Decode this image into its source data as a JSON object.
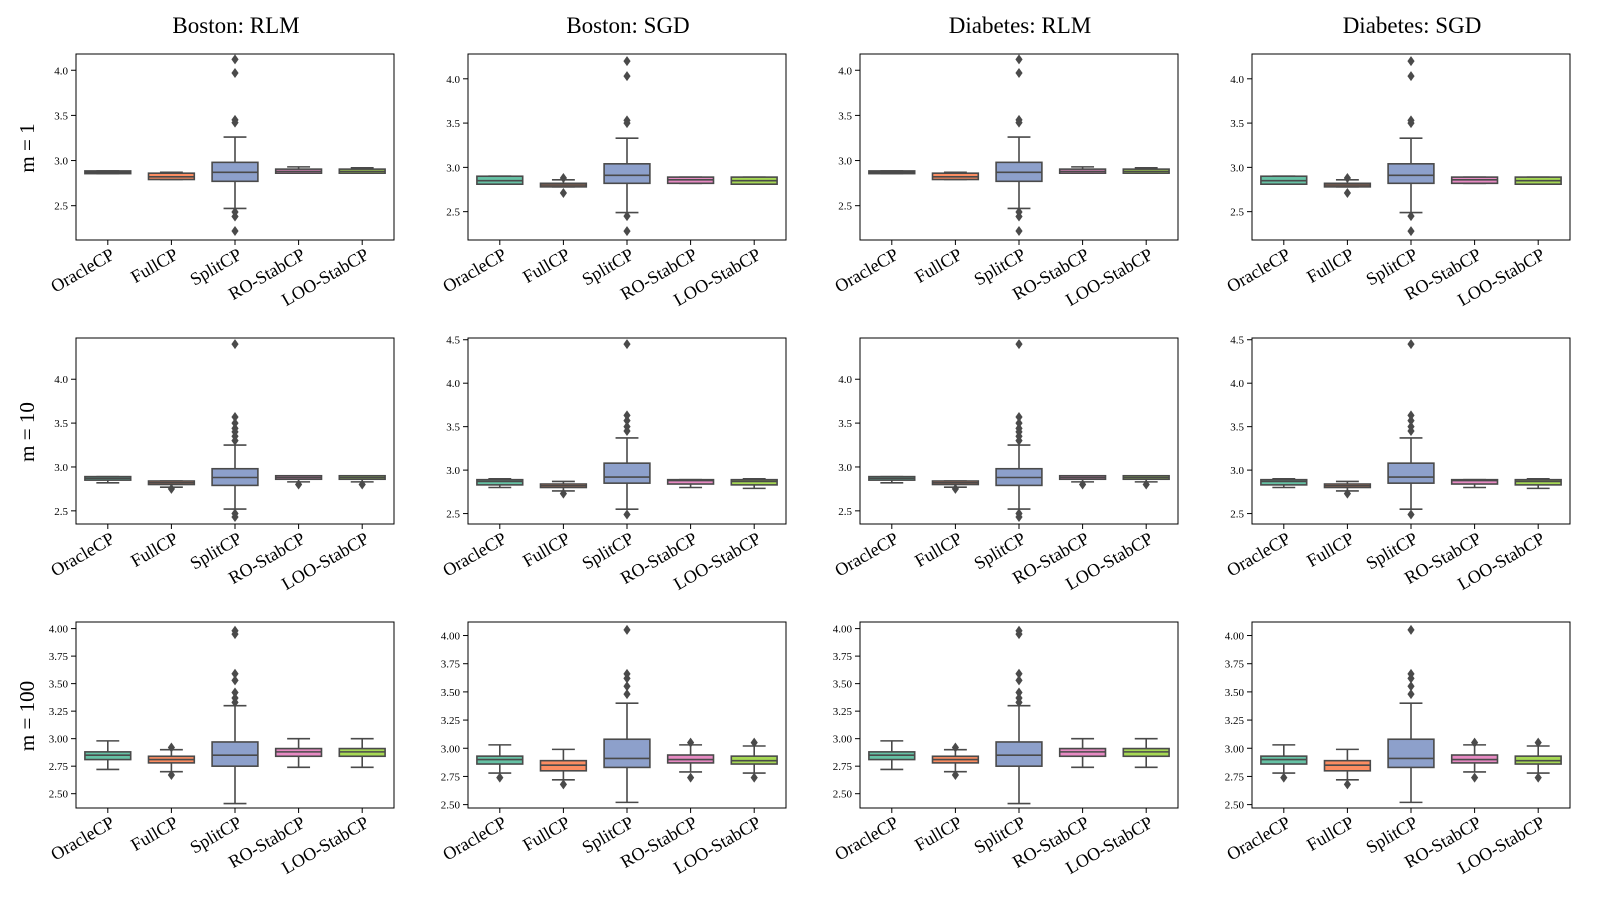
{
  "figure": {
    "column_titles": [
      "Boston: RLM",
      "Boston: SGD",
      "Diabetes: RLM",
      "Diabetes: SGD"
    ],
    "row_labels": [
      "m = 1",
      "m = 10",
      "m = 100"
    ],
    "methods": [
      "OracleCP",
      "FullCP",
      "SplitCP",
      "RO-StabCP",
      "LOO-StabCP"
    ],
    "colors": [
      "#66c2a5",
      "#fc8d62",
      "#8da0cb",
      "#e78ac3",
      "#a6d854"
    ],
    "box_edge_color": "#4a4a4a"
  },
  "chart_data": [
    {
      "type": "box",
      "title": "Boston: RLM",
      "row_label": "m = 1",
      "categories": [
        "OracleCP",
        "FullCP",
        "SplitCP",
        "RO-StabCP",
        "LOO-StabCP"
      ],
      "ylim": [
        2.12,
        4.18
      ],
      "yticks": [
        2.5,
        3.0,
        3.5,
        4.0
      ],
      "ytick_labels": [
        "2.5",
        "3.0",
        "3.5",
        "4.0"
      ],
      "boxes": [
        {
          "q1": 2.855,
          "median": 2.87,
          "q3": 2.885,
          "whislo": 2.855,
          "whishi": 2.885,
          "fliers": []
        },
        {
          "q1": 2.79,
          "median": 2.82,
          "q3": 2.86,
          "whislo": 2.79,
          "whishi": 2.87,
          "fliers": []
        },
        {
          "q1": 2.77,
          "median": 2.87,
          "q3": 2.98,
          "whislo": 2.47,
          "whishi": 3.26,
          "fliers": [
            2.38,
            2.43,
            2.22,
            3.42,
            3.45,
            3.97,
            4.12
          ]
        },
        {
          "q1": 2.86,
          "median": 2.88,
          "q3": 2.905,
          "whislo": 2.86,
          "whishi": 2.93,
          "fliers": []
        },
        {
          "q1": 2.86,
          "median": 2.88,
          "q3": 2.905,
          "whislo": 2.86,
          "whishi": 2.92,
          "fliers": []
        }
      ]
    },
    {
      "type": "box",
      "title": "Boston: SGD",
      "row_label": "m = 1",
      "categories": [
        "OracleCP",
        "FullCP",
        "SplitCP",
        "RO-StabCP",
        "LOO-StabCP"
      ],
      "ylim": [
        2.18,
        4.28
      ],
      "yticks": [
        2.5,
        3.0,
        3.5,
        4.0
      ],
      "ytick_labels": [
        "2.5",
        "3.0",
        "3.5",
        "4.0"
      ],
      "boxes": [
        {
          "q1": 2.81,
          "median": 2.85,
          "q3": 2.9,
          "whislo": 2.81,
          "whishi": 2.9,
          "fliers": []
        },
        {
          "q1": 2.78,
          "median": 2.8,
          "q3": 2.82,
          "whislo": 2.78,
          "whishi": 2.86,
          "fliers": [
            2.71,
            2.88
          ]
        },
        {
          "q1": 2.82,
          "median": 2.91,
          "q3": 3.04,
          "whislo": 2.49,
          "whishi": 3.33,
          "fliers": [
            2.45,
            2.28,
            3.5,
            3.53,
            4.03,
            4.2
          ]
        },
        {
          "q1": 2.82,
          "median": 2.86,
          "q3": 2.89,
          "whislo": 2.82,
          "whishi": 2.89,
          "fliers": []
        },
        {
          "q1": 2.81,
          "median": 2.85,
          "q3": 2.89,
          "whislo": 2.81,
          "whishi": 2.89,
          "fliers": []
        }
      ]
    },
    {
      "type": "box",
      "title": "Diabetes: RLM",
      "row_label": "m = 1",
      "categories": [
        "OracleCP",
        "FullCP",
        "SplitCP",
        "RO-StabCP",
        "LOO-StabCP"
      ],
      "ylim": [
        2.12,
        4.18
      ],
      "yticks": [
        2.5,
        3.0,
        3.5,
        4.0
      ],
      "ytick_labels": [
        "2.5",
        "3.0",
        "3.5",
        "4.0"
      ],
      "boxes": [
        {
          "q1": 2.855,
          "median": 2.87,
          "q3": 2.885,
          "whislo": 2.855,
          "whishi": 2.885,
          "fliers": []
        },
        {
          "q1": 2.79,
          "median": 2.82,
          "q3": 2.86,
          "whislo": 2.79,
          "whishi": 2.87,
          "fliers": []
        },
        {
          "q1": 2.77,
          "median": 2.87,
          "q3": 2.98,
          "whislo": 2.47,
          "whishi": 3.26,
          "fliers": [
            2.38,
            2.43,
            2.22,
            3.42,
            3.45,
            3.97,
            4.12
          ]
        },
        {
          "q1": 2.86,
          "median": 2.88,
          "q3": 2.905,
          "whislo": 2.86,
          "whishi": 2.93,
          "fliers": []
        },
        {
          "q1": 2.86,
          "median": 2.88,
          "q3": 2.905,
          "whislo": 2.86,
          "whishi": 2.92,
          "fliers": []
        }
      ]
    },
    {
      "type": "box",
      "title": "Diabetes: SGD",
      "row_label": "m = 1",
      "categories": [
        "OracleCP",
        "FullCP",
        "SplitCP",
        "RO-StabCP",
        "LOO-StabCP"
      ],
      "ylim": [
        2.18,
        4.28
      ],
      "yticks": [
        2.5,
        3.0,
        3.5,
        4.0
      ],
      "ytick_labels": [
        "2.5",
        "3.0",
        "3.5",
        "4.0"
      ],
      "boxes": [
        {
          "q1": 2.81,
          "median": 2.85,
          "q3": 2.9,
          "whislo": 2.81,
          "whishi": 2.9,
          "fliers": []
        },
        {
          "q1": 2.78,
          "median": 2.8,
          "q3": 2.82,
          "whislo": 2.78,
          "whishi": 2.86,
          "fliers": [
            2.71,
            2.88
          ]
        },
        {
          "q1": 2.82,
          "median": 2.91,
          "q3": 3.04,
          "whislo": 2.49,
          "whishi": 3.33,
          "fliers": [
            2.45,
            2.28,
            3.5,
            3.53,
            4.03,
            4.2
          ]
        },
        {
          "q1": 2.82,
          "median": 2.86,
          "q3": 2.89,
          "whislo": 2.82,
          "whishi": 2.89,
          "fliers": []
        },
        {
          "q1": 2.81,
          "median": 2.85,
          "q3": 2.89,
          "whislo": 2.81,
          "whishi": 2.89,
          "fliers": []
        }
      ]
    },
    {
      "type": "box",
      "title": "Boston: RLM",
      "row_label": "m = 10",
      "categories": [
        "OracleCP",
        "FullCP",
        "SplitCP",
        "RO-StabCP",
        "LOO-StabCP"
      ],
      "ylim": [
        2.35,
        4.47
      ],
      "yticks": [
        2.5,
        3.0,
        3.5,
        4.0
      ],
      "ytick_labels": [
        "2.5",
        "3.0",
        "3.5",
        "4.0"
      ],
      "boxes": [
        {
          "q1": 2.85,
          "median": 2.87,
          "q3": 2.89,
          "whislo": 2.82,
          "whishi": 2.89,
          "fliers": []
        },
        {
          "q1": 2.8,
          "median": 2.82,
          "q3": 2.84,
          "whislo": 2.77,
          "whishi": 2.84,
          "fliers": [
            2.75
          ]
        },
        {
          "q1": 2.79,
          "median": 2.88,
          "q3": 2.98,
          "whislo": 2.52,
          "whishi": 3.25,
          "fliers": [
            2.47,
            2.43,
            3.3,
            3.35,
            3.4,
            3.44,
            3.5,
            3.57,
            4.4
          ]
        },
        {
          "q1": 2.86,
          "median": 2.88,
          "q3": 2.9,
          "whislo": 2.83,
          "whishi": 2.9,
          "fliers": [
            2.8
          ]
        },
        {
          "q1": 2.86,
          "median": 2.88,
          "q3": 2.9,
          "whislo": 2.83,
          "whishi": 2.9,
          "fliers": [
            2.8
          ]
        }
      ]
    },
    {
      "type": "box",
      "title": "Boston: SGD",
      "row_label": "m = 10",
      "categories": [
        "OracleCP",
        "FullCP",
        "SplitCP",
        "RO-StabCP",
        "LOO-StabCP"
      ],
      "ylim": [
        2.38,
        4.52
      ],
      "yticks": [
        2.5,
        3.0,
        3.5,
        4.0,
        4.5
      ],
      "ytick_labels": [
        "2.5",
        "3.0",
        "3.5",
        "4.0",
        "4.5"
      ],
      "boxes": [
        {
          "q1": 2.83,
          "median": 2.87,
          "q3": 2.89,
          "whislo": 2.8,
          "whishi": 2.9,
          "fliers": []
        },
        {
          "q1": 2.8,
          "median": 2.82,
          "q3": 2.84,
          "whislo": 2.76,
          "whishi": 2.87,
          "fliers": [
            2.73
          ]
        },
        {
          "q1": 2.85,
          "median": 2.92,
          "q3": 3.08,
          "whislo": 2.55,
          "whishi": 3.37,
          "fliers": [
            2.49,
            3.45,
            3.5,
            3.57,
            3.63,
            4.45
          ]
        },
        {
          "q1": 2.84,
          "median": 2.88,
          "q3": 2.89,
          "whislo": 2.8,
          "whishi": 2.89,
          "fliers": []
        },
        {
          "q1": 2.83,
          "median": 2.87,
          "q3": 2.89,
          "whislo": 2.79,
          "whishi": 2.9,
          "fliers": []
        }
      ]
    },
    {
      "type": "box",
      "title": "Diabetes: RLM",
      "row_label": "m = 10",
      "categories": [
        "OracleCP",
        "FullCP",
        "SplitCP",
        "RO-StabCP",
        "LOO-StabCP"
      ],
      "ylim": [
        2.35,
        4.47
      ],
      "yticks": [
        2.5,
        3.0,
        3.5,
        4.0
      ],
      "ytick_labels": [
        "2.5",
        "3.0",
        "3.5",
        "4.0"
      ],
      "boxes": [
        {
          "q1": 2.85,
          "median": 2.87,
          "q3": 2.89,
          "whislo": 2.82,
          "whishi": 2.89,
          "fliers": []
        },
        {
          "q1": 2.8,
          "median": 2.82,
          "q3": 2.84,
          "whislo": 2.77,
          "whishi": 2.84,
          "fliers": [
            2.75
          ]
        },
        {
          "q1": 2.79,
          "median": 2.88,
          "q3": 2.98,
          "whislo": 2.52,
          "whishi": 3.25,
          "fliers": [
            2.47,
            2.43,
            3.3,
            3.35,
            3.4,
            3.44,
            3.5,
            3.57,
            4.4
          ]
        },
        {
          "q1": 2.86,
          "median": 2.88,
          "q3": 2.9,
          "whislo": 2.83,
          "whishi": 2.9,
          "fliers": [
            2.8
          ]
        },
        {
          "q1": 2.86,
          "median": 2.88,
          "q3": 2.9,
          "whislo": 2.83,
          "whishi": 2.9,
          "fliers": [
            2.8
          ]
        }
      ]
    },
    {
      "type": "box",
      "title": "Diabetes: SGD",
      "row_label": "m = 10",
      "categories": [
        "OracleCP",
        "FullCP",
        "SplitCP",
        "RO-StabCP",
        "LOO-StabCP"
      ],
      "ylim": [
        2.38,
        4.52
      ],
      "yticks": [
        2.5,
        3.0,
        3.5,
        4.0,
        4.5
      ],
      "ytick_labels": [
        "2.5",
        "3.0",
        "3.5",
        "4.0",
        "4.5"
      ],
      "boxes": [
        {
          "q1": 2.83,
          "median": 2.87,
          "q3": 2.89,
          "whislo": 2.8,
          "whishi": 2.9,
          "fliers": []
        },
        {
          "q1": 2.8,
          "median": 2.82,
          "q3": 2.84,
          "whislo": 2.76,
          "whishi": 2.87,
          "fliers": [
            2.73
          ]
        },
        {
          "q1": 2.85,
          "median": 2.92,
          "q3": 3.08,
          "whislo": 2.55,
          "whishi": 3.37,
          "fliers": [
            2.49,
            3.45,
            3.5,
            3.57,
            3.63,
            4.45
          ]
        },
        {
          "q1": 2.84,
          "median": 2.88,
          "q3": 2.89,
          "whislo": 2.8,
          "whishi": 2.89,
          "fliers": []
        },
        {
          "q1": 2.83,
          "median": 2.87,
          "q3": 2.89,
          "whislo": 2.79,
          "whishi": 2.9,
          "fliers": []
        }
      ]
    },
    {
      "type": "box",
      "title": "Boston: RLM",
      "row_label": "m = 100",
      "categories": [
        "OracleCP",
        "FullCP",
        "SplitCP",
        "RO-StabCP",
        "LOO-StabCP"
      ],
      "ylim": [
        2.37,
        4.06
      ],
      "yticks": [
        2.5,
        2.75,
        3.0,
        3.25,
        3.5,
        3.75,
        4.0
      ],
      "ytick_labels": [
        "2.50",
        "2.75",
        "3.00",
        "3.25",
        "3.50",
        "3.75",
        "4.00"
      ],
      "boxes": [
        {
          "q1": 2.81,
          "median": 2.85,
          "q3": 2.88,
          "whislo": 2.72,
          "whishi": 2.98,
          "fliers": []
        },
        {
          "q1": 2.78,
          "median": 2.81,
          "q3": 2.84,
          "whislo": 2.7,
          "whishi": 2.9,
          "fliers": [
            2.67,
            2.92
          ]
        },
        {
          "q1": 2.75,
          "median": 2.85,
          "q3": 2.97,
          "whislo": 2.41,
          "whishi": 3.3,
          "fliers": [
            3.33,
            3.37,
            3.42,
            3.53,
            3.59,
            3.95,
            3.98
          ]
        },
        {
          "q1": 2.84,
          "median": 2.88,
          "q3": 2.91,
          "whislo": 2.74,
          "whishi": 3.0,
          "fliers": []
        },
        {
          "q1": 2.84,
          "median": 2.88,
          "q3": 2.91,
          "whislo": 2.74,
          "whishi": 3.0,
          "fliers": []
        }
      ]
    },
    {
      "type": "box",
      "title": "Boston: SGD",
      "row_label": "m = 100",
      "categories": [
        "OracleCP",
        "FullCP",
        "SplitCP",
        "RO-StabCP",
        "LOO-StabCP"
      ],
      "ylim": [
        2.47,
        4.12
      ],
      "yticks": [
        2.5,
        2.75,
        3.0,
        3.25,
        3.5,
        3.75,
        4.0
      ],
      "ytick_labels": [
        "2.50",
        "2.75",
        "3.00",
        "3.25",
        "3.50",
        "3.75",
        "4.00"
      ],
      "boxes": [
        {
          "q1": 2.86,
          "median": 2.9,
          "q3": 2.93,
          "whislo": 2.78,
          "whishi": 3.03,
          "fliers": [
            2.74
          ]
        },
        {
          "q1": 2.8,
          "median": 2.85,
          "q3": 2.89,
          "whislo": 2.72,
          "whishi": 2.99,
          "fliers": [
            2.68
          ]
        },
        {
          "q1": 2.83,
          "median": 2.91,
          "q3": 3.08,
          "whislo": 2.52,
          "whishi": 3.4,
          "fliers": [
            3.48,
            3.55,
            3.62,
            3.66,
            4.05
          ]
        },
        {
          "q1": 2.87,
          "median": 2.9,
          "q3": 2.94,
          "whislo": 2.79,
          "whishi": 3.03,
          "fliers": [
            2.74,
            3.05
          ]
        },
        {
          "q1": 2.86,
          "median": 2.89,
          "q3": 2.93,
          "whislo": 2.78,
          "whishi": 3.02,
          "fliers": [
            2.74,
            3.05
          ]
        }
      ]
    },
    {
      "type": "box",
      "title": "Diabetes: RLM",
      "row_label": "m = 100",
      "categories": [
        "OracleCP",
        "FullCP",
        "SplitCP",
        "RO-StabCP",
        "LOO-StabCP"
      ],
      "ylim": [
        2.37,
        4.06
      ],
      "yticks": [
        2.5,
        2.75,
        3.0,
        3.25,
        3.5,
        3.75,
        4.0
      ],
      "ytick_labels": [
        "2.50",
        "2.75",
        "3.00",
        "3.25",
        "3.50",
        "3.75",
        "4.00"
      ],
      "boxes": [
        {
          "q1": 2.81,
          "median": 2.85,
          "q3": 2.88,
          "whislo": 2.72,
          "whishi": 2.98,
          "fliers": []
        },
        {
          "q1": 2.78,
          "median": 2.81,
          "q3": 2.84,
          "whislo": 2.7,
          "whishi": 2.9,
          "fliers": [
            2.67,
            2.92
          ]
        },
        {
          "q1": 2.75,
          "median": 2.85,
          "q3": 2.97,
          "whislo": 2.41,
          "whishi": 3.3,
          "fliers": [
            3.33,
            3.37,
            3.42,
            3.53,
            3.59,
            3.95,
            3.98
          ]
        },
        {
          "q1": 2.84,
          "median": 2.88,
          "q3": 2.91,
          "whislo": 2.74,
          "whishi": 3.0,
          "fliers": []
        },
        {
          "q1": 2.84,
          "median": 2.88,
          "q3": 2.91,
          "whislo": 2.74,
          "whishi": 3.0,
          "fliers": []
        }
      ]
    },
    {
      "type": "box",
      "title": "Diabetes: SGD",
      "row_label": "m = 100",
      "categories": [
        "OracleCP",
        "FullCP",
        "SplitCP",
        "RO-StabCP",
        "LOO-StabCP"
      ],
      "ylim": [
        2.47,
        4.12
      ],
      "yticks": [
        2.5,
        2.75,
        3.0,
        3.25,
        3.5,
        3.75,
        4.0
      ],
      "ytick_labels": [
        "2.50",
        "2.75",
        "3.00",
        "3.25",
        "3.50",
        "3.75",
        "4.00"
      ],
      "boxes": [
        {
          "q1": 2.86,
          "median": 2.9,
          "q3": 2.93,
          "whislo": 2.78,
          "whishi": 3.03,
          "fliers": [
            2.74
          ]
        },
        {
          "q1": 2.8,
          "median": 2.85,
          "q3": 2.89,
          "whislo": 2.72,
          "whishi": 2.99,
          "fliers": [
            2.68
          ]
        },
        {
          "q1": 2.83,
          "median": 2.91,
          "q3": 3.08,
          "whislo": 2.52,
          "whishi": 3.4,
          "fliers": [
            3.48,
            3.55,
            3.62,
            3.66,
            4.05
          ]
        },
        {
          "q1": 2.87,
          "median": 2.9,
          "q3": 2.94,
          "whislo": 2.79,
          "whishi": 3.03,
          "fliers": [
            2.74,
            3.05
          ]
        },
        {
          "q1": 2.86,
          "median": 2.89,
          "q3": 2.93,
          "whislo": 2.78,
          "whishi": 3.02,
          "fliers": [
            2.74,
            3.05
          ]
        }
      ]
    }
  ]
}
